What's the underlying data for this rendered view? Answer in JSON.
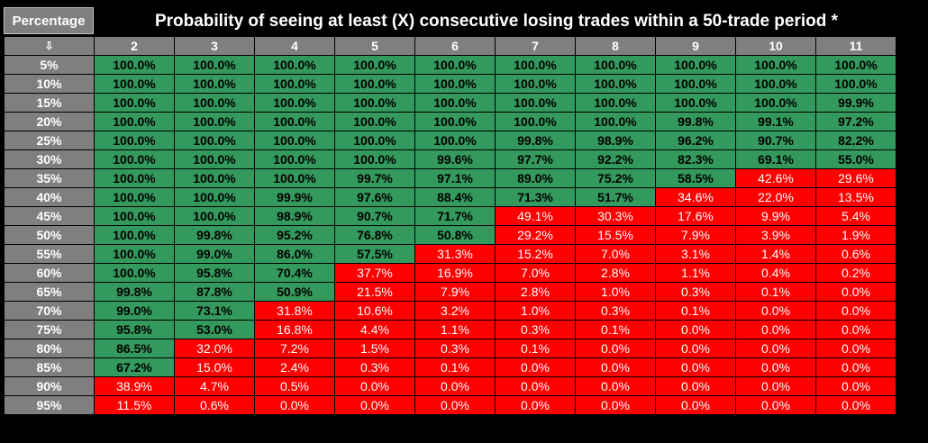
{
  "corner_label": "Percentage",
  "corner_arrow": "⇩",
  "chart_data": {
    "type": "table",
    "title": "Probability of seeing at least (X) consecutive losing trades within a 50-trade period *",
    "columns": [
      "2",
      "3",
      "4",
      "5",
      "6",
      "7",
      "8",
      "9",
      "10",
      "11"
    ],
    "rows": [
      {
        "label": "5%",
        "values": [
          "100.0%",
          "100.0%",
          "100.0%",
          "100.0%",
          "100.0%",
          "100.0%",
          "100.0%",
          "100.0%",
          "100.0%",
          "100.0%"
        ]
      },
      {
        "label": "10%",
        "values": [
          "100.0%",
          "100.0%",
          "100.0%",
          "100.0%",
          "100.0%",
          "100.0%",
          "100.0%",
          "100.0%",
          "100.0%",
          "100.0%"
        ]
      },
      {
        "label": "15%",
        "values": [
          "100.0%",
          "100.0%",
          "100.0%",
          "100.0%",
          "100.0%",
          "100.0%",
          "100.0%",
          "100.0%",
          "100.0%",
          "99.9%"
        ]
      },
      {
        "label": "20%",
        "values": [
          "100.0%",
          "100.0%",
          "100.0%",
          "100.0%",
          "100.0%",
          "100.0%",
          "100.0%",
          "99.8%",
          "99.1%",
          "97.2%"
        ]
      },
      {
        "label": "25%",
        "values": [
          "100.0%",
          "100.0%",
          "100.0%",
          "100.0%",
          "100.0%",
          "99.8%",
          "98.9%",
          "96.2%",
          "90.7%",
          "82.2%"
        ]
      },
      {
        "label": "30%",
        "values": [
          "100.0%",
          "100.0%",
          "100.0%",
          "100.0%",
          "99.6%",
          "97.7%",
          "92.2%",
          "82.3%",
          "69.1%",
          "55.0%"
        ]
      },
      {
        "label": "35%",
        "values": [
          "100.0%",
          "100.0%",
          "100.0%",
          "99.7%",
          "97.1%",
          "89.0%",
          "75.2%",
          "58.5%",
          "42.6%",
          "29.6%"
        ]
      },
      {
        "label": "40%",
        "values": [
          "100.0%",
          "100.0%",
          "99.9%",
          "97.6%",
          "88.4%",
          "71.3%",
          "51.7%",
          "34.6%",
          "22.0%",
          "13.5%"
        ]
      },
      {
        "label": "45%",
        "values": [
          "100.0%",
          "100.0%",
          "98.9%",
          "90.7%",
          "71.7%",
          "49.1%",
          "30.3%",
          "17.6%",
          "9.9%",
          "5.4%"
        ]
      },
      {
        "label": "50%",
        "values": [
          "100.0%",
          "99.8%",
          "95.2%",
          "76.8%",
          "50.8%",
          "29.2%",
          "15.5%",
          "7.9%",
          "3.9%",
          "1.9%"
        ]
      },
      {
        "label": "55%",
        "values": [
          "100.0%",
          "99.0%",
          "86.0%",
          "57.5%",
          "31.3%",
          "15.2%",
          "7.0%",
          "3.1%",
          "1.4%",
          "0.6%"
        ]
      },
      {
        "label": "60%",
        "values": [
          "100.0%",
          "95.8%",
          "70.4%",
          "37.7%",
          "16.9%",
          "7.0%",
          "2.8%",
          "1.1%",
          "0.4%",
          "0.2%"
        ]
      },
      {
        "label": "65%",
        "values": [
          "99.8%",
          "87.8%",
          "50.9%",
          "21.5%",
          "7.9%",
          "2.8%",
          "1.0%",
          "0.3%",
          "0.1%",
          "0.0%"
        ]
      },
      {
        "label": "70%",
        "values": [
          "99.0%",
          "73.1%",
          "31.8%",
          "10.6%",
          "3.2%",
          "1.0%",
          "0.3%",
          "0.1%",
          "0.0%",
          "0.0%"
        ]
      },
      {
        "label": "75%",
        "values": [
          "95.8%",
          "53.0%",
          "16.8%",
          "4.4%",
          "1.1%",
          "0.3%",
          "0.1%",
          "0.0%",
          "0.0%",
          "0.0%"
        ]
      },
      {
        "label": "80%",
        "values": [
          "86.5%",
          "32.0%",
          "7.2%",
          "1.5%",
          "0.3%",
          "0.1%",
          "0.0%",
          "0.0%",
          "0.0%",
          "0.0%"
        ]
      },
      {
        "label": "85%",
        "values": [
          "67.2%",
          "15.0%",
          "2.4%",
          "0.3%",
          "0.1%",
          "0.0%",
          "0.0%",
          "0.0%",
          "0.0%",
          "0.0%"
        ]
      },
      {
        "label": "90%",
        "values": [
          "38.9%",
          "4.7%",
          "0.5%",
          "0.0%",
          "0.0%",
          "0.0%",
          "0.0%",
          "0.0%",
          "0.0%",
          "0.0%"
        ]
      },
      {
        "label": "95%",
        "values": [
          "11.5%",
          "0.6%",
          "0.0%",
          "0.0%",
          "0.0%",
          "0.0%",
          "0.0%",
          "0.0%",
          "0.0%",
          "0.0%"
        ]
      }
    ],
    "colors": {
      "high": "#33995c",
      "low": "#ff0000",
      "header": "#7f7f7f",
      "background": "#000000"
    },
    "color_threshold_percent": 50
  }
}
